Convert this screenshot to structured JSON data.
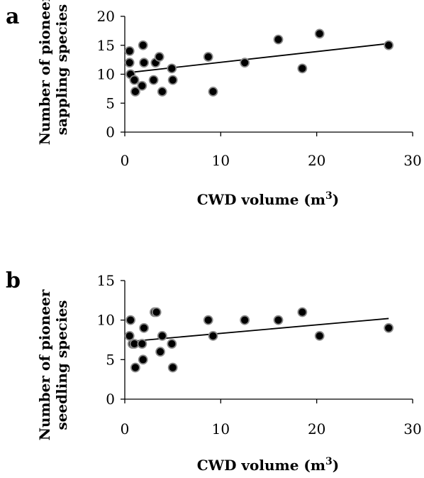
{
  "chart_data": [
    {
      "type": "scatter",
      "panel_label": "a",
      "xlabel": "CWD volume (m",
      "xlabel_sup": "3",
      "xlabel_close": ")",
      "ylabel_lines": [
        "Number of pioneer",
        "sappling species"
      ],
      "xlim": [
        0,
        30
      ],
      "ylim": [
        0,
        20
      ],
      "xticks": [
        0,
        10,
        20,
        30
      ],
      "yticks": [
        0,
        5,
        10,
        15,
        20
      ],
      "grid": false,
      "trendline": true,
      "points": [
        [
          0.5,
          14
        ],
        [
          0.5,
          12
        ],
        [
          0.6,
          10
        ],
        [
          1.0,
          9
        ],
        [
          1.1,
          7
        ],
        [
          1.8,
          8
        ],
        [
          1.9,
          15
        ],
        [
          2.0,
          12
        ],
        [
          3.0,
          9
        ],
        [
          3.2,
          12
        ],
        [
          3.6,
          13
        ],
        [
          3.9,
          7
        ],
        [
          4.9,
          11
        ],
        [
          5.0,
          9
        ],
        [
          8.7,
          13
        ],
        [
          9.2,
          7
        ],
        [
          12.5,
          12
        ],
        [
          16.0,
          16
        ],
        [
          18.5,
          11
        ],
        [
          20.3,
          17
        ],
        [
          27.5,
          15
        ]
      ],
      "trend": {
        "x": [
          0.5,
          27.5
        ],
        "y": [
          10.3,
          15.3
        ]
      },
      "colors": {
        "marker_fill": "#000000",
        "marker_edge": "#8a8a8a",
        "line": "#000000"
      }
    },
    {
      "type": "scatter",
      "panel_label": "b",
      "xlabel": "CWD volume (m",
      "xlabel_sup": "3",
      "xlabel_close": ")",
      "ylabel_lines": [
        "Number of pioneer",
        "seedling species"
      ],
      "xlim": [
        0,
        30
      ],
      "ylim": [
        0,
        15
      ],
      "xticks": [
        0,
        10,
        20,
        30
      ],
      "yticks": [
        0,
        5,
        10,
        15
      ],
      "grid": false,
      "trendline": true,
      "points": [
        [
          0.5,
          8
        ],
        [
          0.6,
          10
        ],
        [
          0.8,
          7
        ],
        [
          1.0,
          7
        ],
        [
          1.1,
          4
        ],
        [
          1.8,
          7
        ],
        [
          1.9,
          5
        ],
        [
          2.0,
          9
        ],
        [
          3.1,
          11
        ],
        [
          3.3,
          11
        ],
        [
          3.7,
          6
        ],
        [
          3.9,
          8
        ],
        [
          4.9,
          7
        ],
        [
          5.0,
          4
        ],
        [
          8.7,
          10
        ],
        [
          9.2,
          8
        ],
        [
          12.5,
          10
        ],
        [
          16.0,
          10
        ],
        [
          18.5,
          11
        ],
        [
          20.3,
          8
        ],
        [
          27.5,
          9
        ]
      ],
      "trend": {
        "x": [
          0.5,
          27.5
        ],
        "y": [
          7.3,
          10.2
        ]
      },
      "colors": {
        "marker_fill": "#000000",
        "marker_edge": "#8a8a8a",
        "line": "#000000"
      }
    }
  ]
}
